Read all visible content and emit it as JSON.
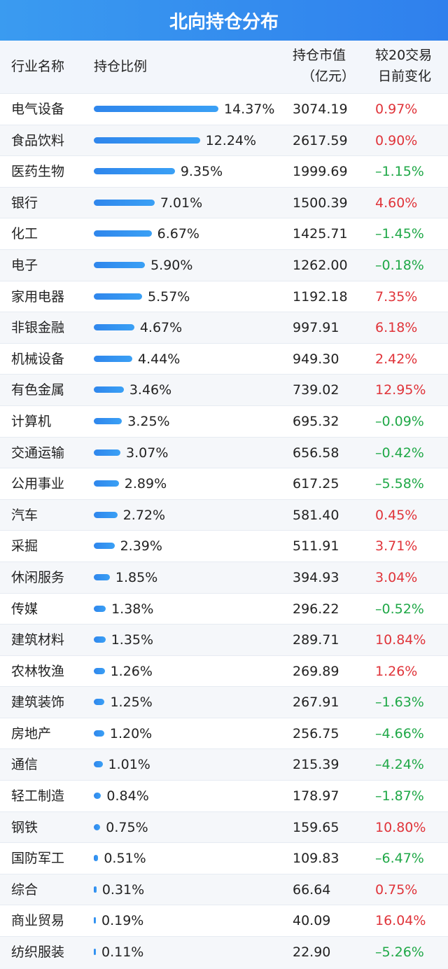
{
  "title": "北向持仓分布",
  "headers": {
    "industry": "行业名称",
    "ratio": "持仓比例",
    "value_line1": "持仓市值",
    "value_line2": "（亿元）",
    "change_line1": "较20交易",
    "change_line2": "日前变化"
  },
  "colors": {
    "bar": "#3a98f2",
    "up": "#e0343a",
    "down": "#1fa847"
  },
  "chart_data": {
    "type": "bar",
    "categories": [
      "电气设备",
      "食品饮料",
      "医药生物",
      "银行",
      "化工",
      "电子",
      "家用电器",
      "非银金融",
      "机械设备",
      "有色金属",
      "计算机",
      "交通运输",
      "公用事业",
      "汽车",
      "采掘",
      "休闲服务",
      "传媒",
      "建筑材料",
      "农林牧渔",
      "建筑装饰",
      "房地产",
      "通信",
      "轻工制造",
      "钢铁",
      "国防军工",
      "综合",
      "商业贸易",
      "纺织服装"
    ],
    "values": [
      14.37,
      12.24,
      9.35,
      7.01,
      6.67,
      5.9,
      5.57,
      4.67,
      4.44,
      3.46,
      3.25,
      3.07,
      2.89,
      2.72,
      2.39,
      1.85,
      1.38,
      1.35,
      1.26,
      1.25,
      1.2,
      1.01,
      0.84,
      0.75,
      0.51,
      0.31,
      0.19,
      0.11
    ],
    "value_labels": [
      "14.37%",
      "12.24%",
      "9.35%",
      "7.01%",
      "6.67%",
      "5.90%",
      "5.57%",
      "4.67%",
      "4.44%",
      "3.46%",
      "3.25%",
      "3.07%",
      "2.89%",
      "2.72%",
      "2.39%",
      "1.85%",
      "1.38%",
      "1.35%",
      "1.26%",
      "1.25%",
      "1.20%",
      "1.01%",
      "0.84%",
      "0.75%",
      "0.51%",
      "0.31%",
      "0.19%",
      "0.11%"
    ],
    "market_value": [
      "3074.19",
      "2617.59",
      "1999.69",
      "1500.39",
      "1425.71",
      "1262.00",
      "1192.18",
      "997.91",
      "949.30",
      "739.02",
      "695.32",
      "656.58",
      "617.25",
      "581.40",
      "511.91",
      "394.93",
      "296.22",
      "289.71",
      "269.89",
      "267.91",
      "256.75",
      "215.39",
      "178.97",
      "159.65",
      "109.83",
      "66.64",
      "40.09",
      "22.90"
    ],
    "change": [
      "0.97%",
      "0.90%",
      "–1.15%",
      "4.60%",
      "–1.45%",
      "–0.18%",
      "7.35%",
      "6.18%",
      "2.42%",
      "12.95%",
      "–0.09%",
      "–0.42%",
      "–5.58%",
      "0.45%",
      "3.71%",
      "3.04%",
      "–0.52%",
      "10.84%",
      "1.26%",
      "–1.63%",
      "–4.66%",
      "–4.24%",
      "–1.87%",
      "10.80%",
      "–6.47%",
      "0.75%",
      "16.04%",
      "–5.26%"
    ],
    "xlim": [
      0,
      14.37
    ]
  }
}
